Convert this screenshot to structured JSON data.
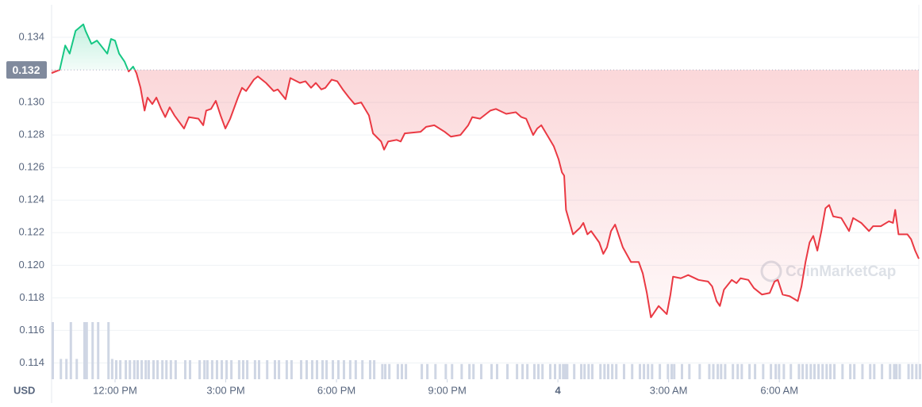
{
  "chart_data": {
    "type": "line",
    "axis_unit": "USD",
    "watermark": "CoinMarketCap",
    "reference": 0.132,
    "color_up": "#16c784",
    "color_down": "#ea3943",
    "volume_color": "#cfd6e4",
    "grid": true,
    "xlim": [
      10.28,
      33.78
    ],
    "ylim": [
      0.113,
      0.136
    ],
    "y2lim": [
      0,
      100
    ],
    "xticks": [
      {
        "value": 12,
        "label": "12:00 PM"
      },
      {
        "value": 15,
        "label": "3:00 PM"
      },
      {
        "value": 18,
        "label": "6:00 PM"
      },
      {
        "value": 21,
        "label": "9:00 PM"
      },
      {
        "value": 24,
        "label": "4"
      },
      {
        "value": 27,
        "label": "3:00 AM"
      },
      {
        "value": 30,
        "label": "6:00 AM"
      }
    ],
    "yticks": [
      0.114,
      0.116,
      0.118,
      {
        "value": 0.12,
        "label": "0.120"
      },
      0.122,
      0.124,
      0.126,
      0.128,
      {
        "value": 0.13,
        "label": "0.130"
      },
      0.134
    ],
    "x": [
      10.28,
      10.5,
      10.65,
      10.77,
      10.93,
      11.14,
      11.2,
      11.36,
      11.51,
      11.79,
      11.89,
      12.0,
      12.11,
      12.26,
      12.37,
      12.49,
      12.58,
      12.69,
      12.8,
      12.88,
      13.01,
      13.12,
      13.25,
      13.36,
      13.48,
      13.61,
      13.87,
      14.0,
      14.26,
      14.39,
      14.47,
      14.6,
      14.73,
      14.86,
      14.99,
      15.12,
      15.33,
      15.44,
      15.55,
      15.76,
      15.87,
      16.09,
      16.3,
      16.41,
      16.62,
      16.75,
      17.01,
      17.16,
      17.31,
      17.44,
      17.59,
      17.7,
      17.87,
      18.02,
      18.17,
      18.34,
      18.49,
      18.67,
      18.88,
      18.99,
      19.21,
      19.29,
      19.4,
      19.63,
      19.74,
      19.85,
      20.28,
      20.43,
      20.65,
      20.93,
      21.1,
      21.36,
      21.57,
      21.68,
      21.89,
      22.17,
      22.32,
      22.6,
      22.86,
      23.01,
      23.14,
      23.33,
      23.44,
      23.55,
      23.76,
      23.89,
      24.02,
      24.11,
      24.17,
      24.22,
      24.41,
      24.6,
      24.69,
      24.8,
      24.9,
      25.12,
      25.23,
      25.33,
      25.44,
      25.55,
      25.76,
      25.98,
      26.19,
      26.3,
      26.41,
      26.52,
      26.73,
      26.95,
      27.05,
      27.12,
      27.33,
      27.53,
      27.81,
      28.07,
      28.18,
      28.3,
      28.39,
      28.5,
      28.71,
      28.84,
      28.95,
      29.16,
      29.31,
      29.53,
      29.74,
      29.87,
      29.96,
      30.09,
      30.28,
      30.5,
      30.6,
      30.71,
      30.82,
      30.92,
      31.03,
      31.14,
      31.25,
      31.35,
      31.46,
      31.68,
      31.89,
      32.0,
      32.22,
      32.43,
      32.54,
      32.75,
      32.97,
      33.08,
      33.14,
      33.23,
      33.47,
      33.57,
      33.68,
      33.78
    ],
    "values": [
      0.1318,
      0.132,
      0.1335,
      0.133,
      0.1344,
      0.1348,
      0.1344,
      0.1336,
      0.1338,
      0.133,
      0.1339,
      0.1338,
      0.133,
      0.1325,
      0.1319,
      0.1322,
      0.1318,
      0.1309,
      0.1295,
      0.1303,
      0.1299,
      0.1303,
      0.1296,
      0.1291,
      0.1297,
      0.1292,
      0.1284,
      0.1291,
      0.129,
      0.1286,
      0.1295,
      0.1296,
      0.1301,
      0.1292,
      0.1284,
      0.129,
      0.1303,
      0.1309,
      0.1307,
      0.1314,
      0.1316,
      0.1312,
      0.1307,
      0.1308,
      0.1302,
      0.1315,
      0.1312,
      0.1313,
      0.1309,
      0.1312,
      0.1308,
      0.1309,
      0.1314,
      0.1313,
      0.1308,
      0.1303,
      0.1299,
      0.13,
      0.1292,
      0.1281,
      0.1276,
      0.1271,
      0.1276,
      0.1277,
      0.1276,
      0.1281,
      0.1282,
      0.1285,
      0.1286,
      0.1282,
      0.1279,
      0.128,
      0.1286,
      0.1291,
      0.129,
      0.1295,
      0.1296,
      0.1293,
      0.1294,
      0.1291,
      0.129,
      0.128,
      0.1284,
      0.1286,
      0.1278,
      0.1273,
      0.1265,
      0.1257,
      0.1255,
      0.1234,
      0.1219,
      0.1223,
      0.1226,
      0.1219,
      0.1221,
      0.1214,
      0.1207,
      0.1211,
      0.1221,
      0.1225,
      0.1211,
      0.1202,
      0.1202,
      0.1195,
      0.1183,
      0.1168,
      0.1175,
      0.117,
      0.1182,
      0.1193,
      0.1192,
      0.1194,
      0.1191,
      0.119,
      0.1187,
      0.1178,
      0.1175,
      0.1185,
      0.1191,
      0.1189,
      0.1192,
      0.1191,
      0.1186,
      0.1182,
      0.1183,
      0.119,
      0.1191,
      0.1182,
      0.1181,
      0.1178,
      0.1187,
      0.1202,
      0.1214,
      0.1218,
      0.1209,
      0.1221,
      0.1235,
      0.1237,
      0.123,
      0.1229,
      0.1221,
      0.1229,
      0.1226,
      0.1221,
      0.1224,
      0.1224,
      0.1227,
      0.1226,
      0.1234,
      0.1219,
      0.1219,
      0.1216,
      0.1209,
      0.1204
    ],
    "volume": [
      90,
      32,
      32,
      90,
      32,
      90,
      90,
      90,
      90,
      90,
      32,
      30,
      30,
      30,
      30,
      30,
      30,
      30,
      30,
      30,
      30,
      30,
      30,
      30,
      30,
      30,
      30,
      30,
      30,
      30,
      30,
      30,
      30,
      30,
      30,
      30,
      30,
      30,
      30,
      30,
      30,
      30,
      30,
      30,
      30,
      30,
      30,
      30,
      30,
      30,
      30,
      30,
      30,
      30,
      30,
      30,
      30,
      30,
      30,
      30,
      24,
      24,
      24,
      24,
      24,
      24,
      24,
      24,
      24,
      24,
      24,
      24,
      24,
      24,
      24,
      24,
      24,
      24,
      24,
      24,
      24,
      24,
      24,
      24,
      24,
      24,
      24,
      24,
      24,
      24,
      24,
      24,
      24,
      24,
      24,
      24,
      24,
      24,
      24,
      24,
      24,
      24,
      24,
      24,
      24,
      24,
      24,
      24,
      24,
      24,
      24,
      24,
      24,
      24,
      24,
      24,
      24,
      24,
      24,
      24,
      24,
      24,
      24,
      24,
      24,
      24,
      24,
      24,
      24,
      24,
      24,
      24,
      24,
      24,
      24,
      24,
      24,
      24,
      24,
      24,
      24,
      24,
      24,
      24,
      24,
      24,
      24,
      24,
      24,
      24,
      24,
      24,
      24,
      24
    ]
  }
}
